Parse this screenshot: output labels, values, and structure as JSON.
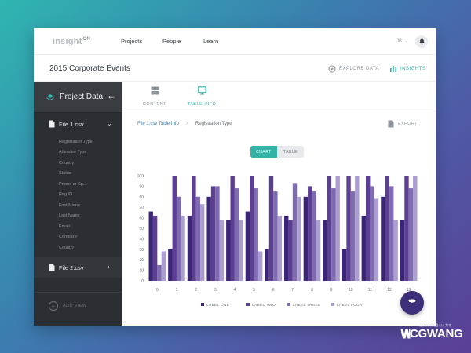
{
  "colors": {
    "accent": "#33b3a6",
    "sidebar": "#2b2e32",
    "series": [
      "#3b2577",
      "#5c3f93",
      "#7f6bb2",
      "#ac9fd0"
    ]
  },
  "header": {
    "logo_text": "insight",
    "logo_badge": "ON",
    "nav": [
      "Projects",
      "People",
      "Learn"
    ],
    "user_initials": "JB"
  },
  "titlebar": {
    "title": "2015 Corporate Events",
    "explore_label": "EXPLORE DATA",
    "insights_label": "INSIGHTS"
  },
  "sidebar": {
    "title": "Project Data",
    "files": [
      {
        "name": "File 1.csv",
        "expanded": true
      },
      {
        "name": "File 2.csv",
        "expanded": false
      }
    ],
    "fields": [
      "Registration Type",
      "Attendee Type",
      "Country",
      "Status",
      "Promo or Sp...",
      "Reg ID",
      "First Name",
      "Last Name",
      "Email",
      "Company",
      "Country"
    ],
    "add_view_label": "ADD VIEW"
  },
  "tabs": [
    {
      "label": "CONTENT",
      "icon": "grid-icon",
      "active": false
    },
    {
      "label": "TABLE INFO",
      "icon": "monitor-icon",
      "active": true
    }
  ],
  "breadcrumb": {
    "link": "File 1.csv Table Info",
    "separator": ">",
    "current": "Registration Type"
  },
  "export_label": "EXPORT",
  "toggle": {
    "chart": "CHART",
    "table": "TABLE",
    "selected": "chart"
  },
  "chart_data": {
    "type": "bar",
    "categories": [
      "0",
      "1",
      "2",
      "3",
      "4",
      "5",
      "6",
      "7",
      "8",
      "9",
      "10",
      "11",
      "12",
      "13"
    ],
    "ylim": [
      0,
      100
    ],
    "yticks": [
      "0",
      "10",
      "20",
      "30",
      "40",
      "50",
      "60",
      "70",
      "80",
      "90",
      "100"
    ],
    "series": [
      {
        "name": "LABEL ONE",
        "values": [
          66,
          30,
          62,
          80,
          58,
          66,
          30,
          62,
          80,
          58,
          30,
          62,
          80,
          58
        ]
      },
      {
        "name": "LABEL TWO",
        "values": [
          62,
          100,
          100,
          90,
          100,
          100,
          100,
          58,
          90,
          100,
          100,
          100,
          100,
          100
        ]
      },
      {
        "name": "LABEL THREE",
        "values": [
          15,
          80,
          80,
          90,
          88,
          88,
          85,
          93,
          85,
          88,
          85,
          90,
          90,
          88
        ]
      },
      {
        "name": "LABEL FOUR",
        "values": [
          28,
          62,
          73,
          58,
          58,
          28,
          62,
          80,
          58,
          100,
          100,
          78,
          58,
          100
        ]
      }
    ],
    "legend_position": "bottom",
    "grid": false
  }
}
